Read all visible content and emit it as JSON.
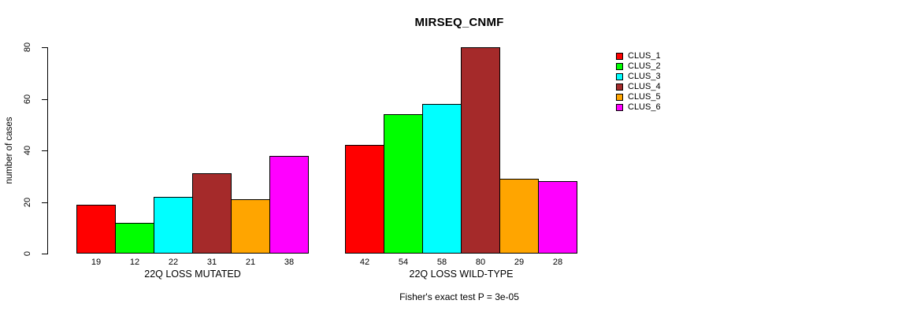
{
  "chart_data": {
    "type": "bar",
    "title": "MIRSEQ_CNMF",
    "xlabel": "",
    "ylabel": "number of cases",
    "ylim": [
      0,
      80
    ],
    "yticks": [
      0,
      20,
      40,
      60,
      80
    ],
    "grid": false,
    "legend_position": "right",
    "categories": [
      "22Q LOSS MUTATED",
      "22Q LOSS WILD-TYPE"
    ],
    "series": [
      {
        "name": "CLUS_1",
        "color": "#FF0000",
        "values": [
          19,
          42
        ]
      },
      {
        "name": "CLUS_2",
        "color": "#00FF00",
        "values": [
          12,
          54
        ]
      },
      {
        "name": "CLUS_3",
        "color": "#00FFFF",
        "values": [
          22,
          58
        ]
      },
      {
        "name": "CLUS_4",
        "color": "#A52A2A",
        "values": [
          31,
          80
        ]
      },
      {
        "name": "CLUS_5",
        "color": "#FFA500",
        "values": [
          21,
          29
        ]
      },
      {
        "name": "CLUS_6",
        "color": "#FF00FF",
        "values": [
          38,
          28
        ]
      }
    ],
    "bar_value_labels": [
      [
        19,
        12,
        22,
        31,
        21,
        38
      ],
      [
        42,
        54,
        58,
        80,
        29,
        28
      ]
    ],
    "annotation": "Fisher's exact test P = 3e-05"
  }
}
